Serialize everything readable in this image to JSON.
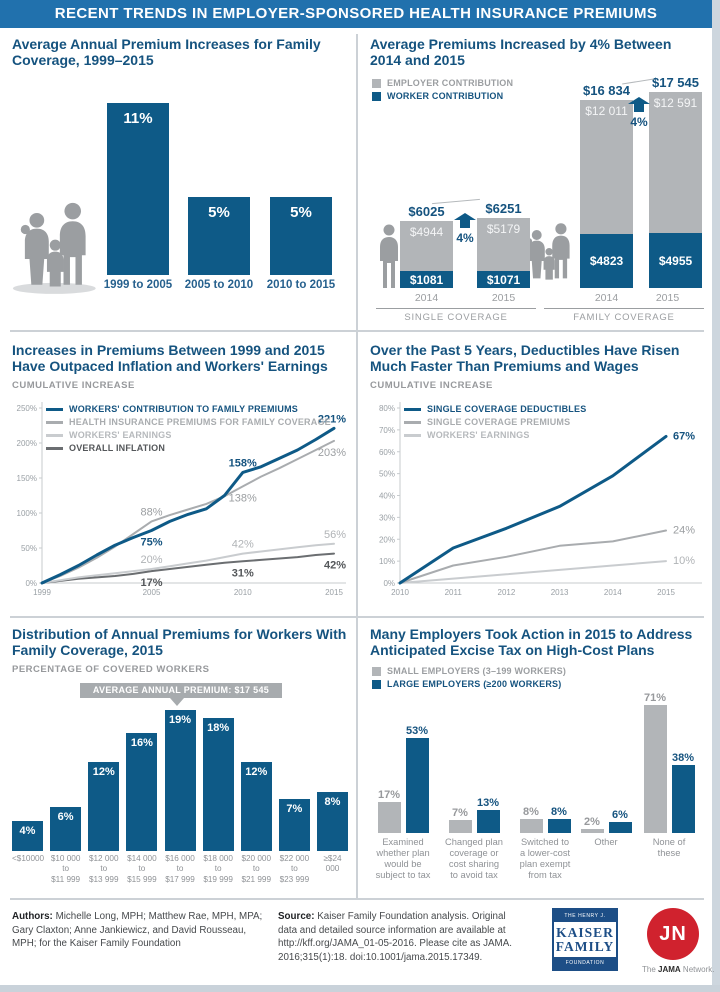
{
  "header": {
    "title": "RECENT TRENDS IN EMPLOYER-SPONSORED HEALTH INSURANCE PREMIUMS"
  },
  "colors": {
    "header_bg": "#2171ad",
    "title_navy": "#15537f",
    "bar_blue": "#0e5a87",
    "bar_gray": "#b2b5b8",
    "text_gray": "#97999c",
    "line_blue": "#0e5a87",
    "line_gray": "#a9acaf",
    "line_light": "#c9cccf",
    "line_dark": "#6b6e71",
    "divider": "#ccd1d6",
    "kff_blue": "#1d4e86",
    "jama_red": "#d0222e"
  },
  "chart_data": [
    {
      "type": "bar",
      "title": "Average Annual Premium Increases for Family Coverage, 1999–2015",
      "categories": [
        "1999 to 2005",
        "2005 to 2010",
        "2010 to 2015"
      ],
      "values": [
        11,
        5,
        5
      ],
      "value_labels": [
        "11%",
        "5%",
        "5%"
      ],
      "ylim": [
        0,
        12
      ]
    },
    {
      "type": "stacked_bar",
      "title": "Average Premiums Increased by 4% Between 2014 and 2015",
      "legend": [
        "EMPLOYER CONTRIBUTION",
        "WORKER CONTRIBUTION"
      ],
      "groups": [
        {
          "label": "SINGLE COVERAGE",
          "change_label": "4%",
          "bars": [
            {
              "year": "2014",
              "total": 6025,
              "employer": 4944,
              "worker": 1081,
              "total_label": "$6025",
              "employer_label": "$4944",
              "worker_label": "$1081"
            },
            {
              "year": "2015",
              "total": 6251,
              "employer": 5179,
              "worker": 1071,
              "total_label": "$6251",
              "employer_label": "$5179",
              "worker_label": "$1071"
            }
          ]
        },
        {
          "label": "FAMILY COVERAGE",
          "change_label": "4%",
          "bars": [
            {
              "year": "2014",
              "total": 16834,
              "employer": 12011,
              "worker": 4823,
              "total_label": "$16 834",
              "employer_label": "$12 011",
              "worker_label": "$4823"
            },
            {
              "year": "2015",
              "total": 17545,
              "employer": 12591,
              "worker": 4955,
              "total_label": "$17 545",
              "employer_label": "$12 591",
              "worker_label": "$4955"
            }
          ]
        }
      ]
    },
    {
      "type": "line",
      "title": "Increases in Premiums Between 1999 and 2015 Have Outpaced Inflation and Workers' Earnings",
      "subtitle": "CUMULATIVE INCREASE",
      "x_start": 1999,
      "x_ticks": [
        1999,
        2005,
        2010,
        2015
      ],
      "ylim": [
        0,
        250
      ],
      "y_tick_step": 50,
      "note": "intermediate yearly values estimated from plot; labeled points are exact",
      "series": [
        {
          "name": "WORKERS' CONTRIBUTION TO FAMILY PREMIUMS",
          "color": "blue",
          "width": 3,
          "label_color": "#15537f",
          "label_weight": "bold",
          "values": [
            0,
            12,
            25,
            40,
            54,
            65,
            75,
            88,
            98,
            106,
            125,
            158,
            166,
            178,
            190,
            205,
            221
          ],
          "callouts": [
            {
              "year": 2005,
              "text": "75%",
              "pos": "below"
            },
            {
              "year": 2010,
              "text": "158%",
              "pos": "above"
            },
            {
              "year": 2015,
              "text": "221%",
              "pos": "above"
            }
          ]
        },
        {
          "name": "HEALTH INSURANCE PREMIUMS FOR FAMILY COVERAGE",
          "color": "gray",
          "width": 2,
          "label_color": "#9b9ea1",
          "label_weight": "normal",
          "values": [
            0,
            10,
            22,
            36,
            52,
            70,
            88,
            97,
            105,
            113,
            124,
            138,
            152,
            164,
            177,
            190,
            203
          ],
          "callouts": [
            {
              "year": 2005,
              "text": "88%",
              "pos": "above"
            },
            {
              "year": 2010,
              "text": "138%",
              "pos": "below"
            },
            {
              "year": 2015,
              "text": "203%",
              "pos": "below"
            }
          ]
        },
        {
          "name": "WORKERS' EARNINGS",
          "color": "light",
          "width": 2,
          "label_color": "#b0b3b6",
          "label_weight": "normal",
          "values": [
            0,
            4,
            8,
            11,
            14,
            17,
            20,
            24,
            28,
            32,
            37,
            42,
            45,
            48,
            51,
            54,
            56
          ],
          "callouts": [
            {
              "year": 2005,
              "text": "20%",
              "pos": "above"
            },
            {
              "year": 2010,
              "text": "42%",
              "pos": "above"
            },
            {
              "year": 2015,
              "text": "56%",
              "pos": "above"
            }
          ]
        },
        {
          "name": "OVERALL INFLATION",
          "color": "dark",
          "width": 2,
          "label_color": "#54575a",
          "label_weight": "bold",
          "values": [
            0,
            3,
            6,
            8,
            10,
            13,
            17,
            20,
            23,
            26,
            29,
            31,
            33,
            35,
            37,
            40,
            42
          ],
          "callouts": [
            {
              "year": 2005,
              "text": "17%",
              "pos": "below"
            },
            {
              "year": 2010,
              "text": "31%",
              "pos": "below"
            },
            {
              "year": 2015,
              "text": "42%",
              "pos": "below"
            }
          ]
        }
      ]
    },
    {
      "type": "line",
      "title": "Over the Past 5 Years, Deductibles Have Risen Much Faster Than Premiums and Wages",
      "subtitle": "CUMULATIVE INCREASE",
      "x_start": 2010,
      "x_ticks": [
        2010,
        2011,
        2012,
        2013,
        2014,
        2015
      ],
      "ylim": [
        0,
        80
      ],
      "y_tick_step": 10,
      "note": "intermediate yearly values estimated from plot; end labels are exact",
      "series": [
        {
          "name": "SINGLE COVERAGE DEDUCTIBLES",
          "color": "blue",
          "width": 3,
          "label_color": "#15537f",
          "label_weight": "bold",
          "values": [
            0,
            16,
            25,
            35,
            49,
            67
          ],
          "end_label": "67%"
        },
        {
          "name": "SINGLE COVERAGE PREMIUMS",
          "color": "gray",
          "width": 2,
          "label_color": "#9b9ea1",
          "label_weight": "normal",
          "values": [
            0,
            8,
            12,
            17,
            19,
            24
          ],
          "end_label": "24%"
        },
        {
          "name": "WORKERS' EARNINGS",
          "color": "light",
          "width": 2,
          "label_color": "#b0b3b6",
          "label_weight": "normal",
          "values": [
            0,
            2,
            4,
            6,
            8,
            10
          ],
          "end_label": "10%"
        }
      ]
    },
    {
      "type": "bar",
      "title": "Distribution of Annual Premiums for Workers With Family Coverage, 2015",
      "subtitle": "PERCENTAGE OF COVERED WORKERS",
      "annotation": "AVERAGE ANNUAL PREMIUM: $17 545",
      "annotation_points_to": "$16 000 to $17 999",
      "categories": [
        [
          "<$10000"
        ],
        [
          "$10 000",
          "to",
          "$11 999"
        ],
        [
          "$12 000",
          "to",
          "$13 999"
        ],
        [
          "$14 000",
          "to",
          "$15 999"
        ],
        [
          "$16 000",
          "to",
          "$17 999"
        ],
        [
          "$18 000",
          "to",
          "$19 999"
        ],
        [
          "$20 000",
          "to",
          "$21 999"
        ],
        [
          "$22 000",
          "to",
          "$23 999"
        ],
        [
          "≥$24 000"
        ]
      ],
      "values": [
        4,
        6,
        12,
        16,
        19,
        18,
        12,
        7,
        8
      ],
      "value_labels": [
        "4%",
        "6%",
        "12%",
        "16%",
        "19%",
        "18%",
        "12%",
        "7%",
        "8%"
      ]
    },
    {
      "type": "grouped_bar",
      "title": "Many Employers Took Action in 2015 to Address Anticipated Excise Tax on High-Cost Plans",
      "legend": [
        "SMALL EMPLOYERS (3–199 WORKERS)",
        "LARGE EMPLOYERS (≥200 WORKERS)"
      ],
      "categories": [
        [
          "Examined",
          "whether plan",
          "would be",
          "subject to tax"
        ],
        [
          "Changed plan",
          "coverage or",
          "cost sharing",
          "to avoid tax"
        ],
        [
          "Switched to",
          "a lower-cost",
          "plan exempt",
          "from tax"
        ],
        [
          "Other"
        ],
        [
          "None of",
          "these"
        ]
      ],
      "series": [
        {
          "name": "SMALL EMPLOYERS (3–199 WORKERS)",
          "values": [
            17,
            7,
            8,
            2,
            71
          ],
          "value_labels": [
            "17%",
            "7%",
            "8%",
            "2%",
            "71%"
          ]
        },
        {
          "name": "LARGE EMPLOYERS (≥200 WORKERS)",
          "values": [
            53,
            13,
            8,
            6,
            38
          ],
          "value_labels": [
            "53%",
            "13%",
            "8%",
            "6%",
            "38%"
          ]
        }
      ]
    }
  ],
  "footer": {
    "authors_label": "Authors:",
    "authors_text": "Michelle Long, MPH; Matthew Rae, MPH, MPA; Gary Claxton; Anne Jankiewicz, and David Rousseau, MPH; for the Kaiser Family Foundation",
    "source_label": "Source:",
    "source_text": "Kaiser Family Foundation analysis. Original data and detailed source information are available at http://kff.org/JAMA_01-05-2016. Please cite as JAMA. 2016;315(1):18. doi:10.1001/jama.2015.17349.",
    "kff_logo": {
      "line1": "THE HENRY J.",
      "line2": "KAISER",
      "line3": "FAMILY",
      "line4": "FOUNDATION"
    },
    "jama_logo": {
      "monogram": "JN",
      "caption_pre": "The ",
      "caption_bold": "JAMA",
      "caption_post": " Network."
    }
  }
}
